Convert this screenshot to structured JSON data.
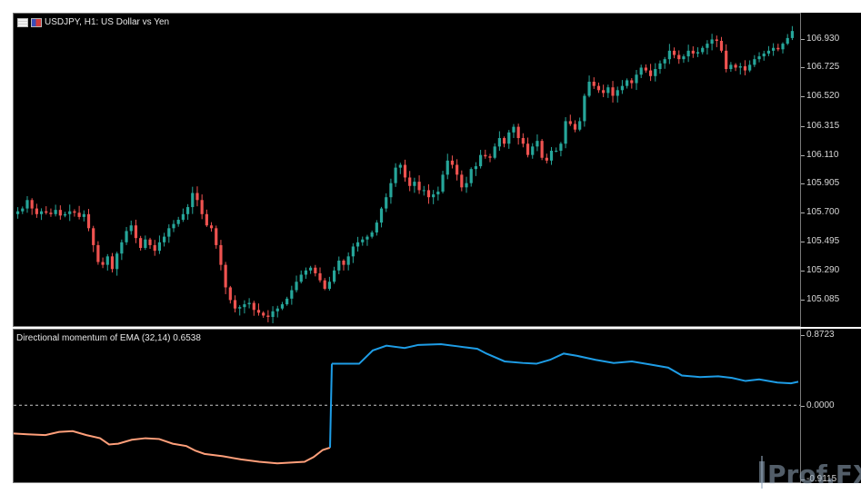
{
  "chart": {
    "title": "USDJPY, H1:  US Dollar vs Yen",
    "price_ticks": [
      "106.930",
      "106.725",
      "106.520",
      "106.315",
      "106.110",
      "105.905",
      "105.700",
      "105.495",
      "105.290",
      "105.085"
    ],
    "colors": {
      "bull": "#26a69a",
      "bear": "#ef5350",
      "background": "#000000"
    }
  },
  "indicator": {
    "label": "Directional momentum of EMA (32,14) 0.6538",
    "ticks": [
      "0.8723",
      "0.0000",
      "-0.9115"
    ],
    "colors": {
      "positive": "#1e9de6",
      "negative": "#ff9f7a",
      "zero_line": "#c8c8c8"
    }
  },
  "watermark": {
    "text": "Prof.FX"
  },
  "chart_data": [
    {
      "type": "candlestick",
      "title": "USDJPY, H1:  US Dollar vs Yen",
      "ylim": [
        104.95,
        107.03
      ],
      "close": [
        105.72,
        105.74,
        105.8,
        105.74,
        105.7,
        105.72,
        105.71,
        105.7,
        105.73,
        105.69,
        105.7,
        105.72,
        105.71,
        105.68,
        105.7,
        105.6,
        105.48,
        105.36,
        105.34,
        105.4,
        105.31,
        105.42,
        105.5,
        105.58,
        105.62,
        105.53,
        105.46,
        105.52,
        105.48,
        105.44,
        105.5,
        105.54,
        105.6,
        105.63,
        105.66,
        105.7,
        105.75,
        105.85,
        105.8,
        105.7,
        105.62,
        105.6,
        105.48,
        105.34,
        105.18,
        105.09,
        105.03,
        105.04,
        105.06,
        105.07,
        105.02,
        105.0,
        104.98,
        104.97,
        105.01,
        105.03,
        105.06,
        105.1,
        105.16,
        105.22,
        105.27,
        105.3,
        105.32,
        105.28,
        105.23,
        105.17,
        105.22,
        105.3,
        105.37,
        105.34,
        105.4,
        105.47,
        105.5,
        105.52,
        105.54,
        105.57,
        105.64,
        105.74,
        105.82,
        105.92,
        106.03,
        106.05,
        105.96,
        105.9,
        105.93,
        105.87,
        105.87,
        105.82,
        105.84,
        105.86,
        105.98,
        106.08,
        106.05,
        105.98,
        105.89,
        105.92,
        106.02,
        106.04,
        106.12,
        106.11,
        106.1,
        106.18,
        106.24,
        106.2,
        106.28,
        106.32,
        106.24,
        106.2,
        106.12,
        106.18,
        106.22,
        106.1,
        106.08,
        106.15,
        106.15,
        106.2,
        106.36,
        106.34,
        106.3,
        106.36,
        106.54,
        106.64,
        106.61,
        106.58,
        106.56,
        106.6,
        106.54,
        106.58,
        106.61,
        106.65,
        106.63,
        106.69,
        106.74,
        106.72,
        106.68,
        106.73,
        106.77,
        106.8,
        106.86,
        106.83,
        106.8,
        106.82,
        106.86,
        106.84,
        106.85,
        106.88,
        106.91,
        106.94,
        106.93,
        106.86,
        106.73,
        106.76,
        106.74,
        106.75,
        106.72,
        106.76,
        106.8,
        106.82,
        106.84,
        106.86,
        106.88,
        106.87,
        106.91,
        106.95,
        107.0
      ]
    },
    {
      "type": "line",
      "title": "Directional momentum of EMA (32,14)",
      "ylim": [
        -0.9115,
        0.8723
      ],
      "last": 0.6538
    }
  ]
}
